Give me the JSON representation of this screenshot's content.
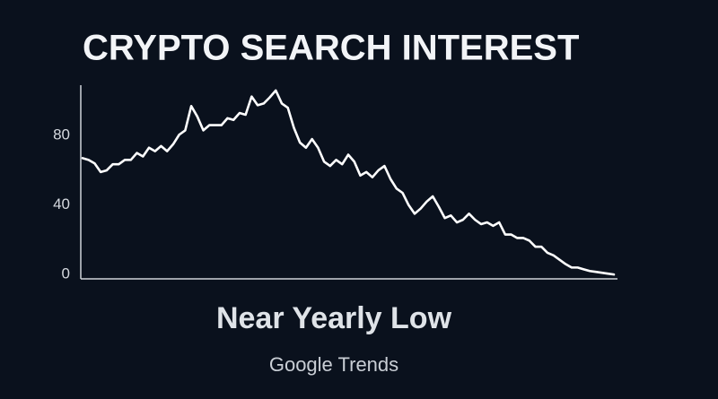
{
  "chart_data": {
    "type": "line",
    "title": "CRYPTO SEARCH INTEREST",
    "subtitle": "Near Yearly Low",
    "source": "Google Trends",
    "color": "#ffffff",
    "values": [
      69,
      68,
      66,
      61,
      62,
      65.5,
      65.5,
      68,
      68,
      72,
      70,
      75,
      73,
      76,
      73,
      77,
      82.5,
      85,
      99,
      93,
      85,
      88,
      88,
      88,
      92,
      91,
      95,
      94,
      104.5,
      99.5,
      100.5,
      104,
      108,
      100.5,
      98,
      86.5,
      78,
      75,
      80,
      75,
      67,
      64.5,
      68,
      65.5,
      71,
      67,
      59,
      61,
      58,
      62,
      64.5,
      57,
      51.5,
      49,
      42,
      37,
      40,
      44,
      47,
      41,
      34.5,
      36,
      32,
      33.5,
      37,
      33.5,
      31,
      32,
      30,
      32,
      25,
      25,
      23,
      23,
      21.5,
      18,
      18,
      14.5,
      13,
      10.5,
      8,
      6,
      6,
      5,
      4,
      3.5,
      3,
      2.5,
      2
    ],
    "ylim": [
      0,
      110
    ],
    "yticks": [
      0,
      40,
      80
    ],
    "grid": false
  }
}
